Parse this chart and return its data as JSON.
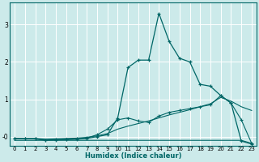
{
  "xlabel": "Humidex (Indice chaleur)",
  "bg_color": "#cceaea",
  "line_color": "#006666",
  "grid_color": "#ffffff",
  "xlim": [
    -0.5,
    23.5
  ],
  "ylim": [
    -0.25,
    3.6
  ],
  "xticks": [
    0,
    1,
    2,
    3,
    4,
    5,
    6,
    7,
    8,
    9,
    10,
    11,
    12,
    13,
    14,
    15,
    16,
    17,
    18,
    19,
    20,
    21,
    22,
    23
  ],
  "yticks": [
    0,
    1,
    2,
    3
  ],
  "ytick_labels": [
    "-0",
    "1",
    "2",
    "3"
  ],
  "curve1_x": [
    0,
    1,
    2,
    3,
    4,
    5,
    6,
    7,
    8,
    9,
    10,
    11,
    12,
    13,
    14,
    15,
    16,
    17,
    18,
    19,
    20,
    21,
    22,
    23
  ],
  "curve1_y": [
    -0.05,
    -0.06,
    -0.06,
    -0.1,
    -0.09,
    -0.08,
    -0.07,
    -0.05,
    0.0,
    0.05,
    0.5,
    1.85,
    2.05,
    2.05,
    3.3,
    2.55,
    2.1,
    2.0,
    1.4,
    1.35,
    1.1,
    0.9,
    -0.12,
    -0.2
  ],
  "curve2_x": [
    0,
    1,
    2,
    3,
    4,
    5,
    6,
    7,
    8,
    9,
    10,
    11,
    12,
    13,
    14,
    15,
    16,
    17,
    18,
    19,
    20,
    21,
    22,
    23
  ],
  "curve2_y": [
    -0.1,
    -0.1,
    -0.1,
    -0.1,
    -0.1,
    -0.1,
    -0.1,
    -0.1,
    -0.1,
    -0.1,
    -0.1,
    -0.1,
    -0.1,
    -0.1,
    -0.1,
    -0.1,
    -0.1,
    -0.1,
    -0.1,
    -0.1,
    -0.1,
    -0.1,
    -0.1,
    -0.18
  ],
  "curve3_x": [
    0,
    1,
    2,
    3,
    4,
    5,
    6,
    7,
    8,
    9,
    10,
    11,
    12,
    13,
    14,
    15,
    16,
    17,
    18,
    19,
    20,
    21,
    22,
    23
  ],
  "curve3_y": [
    -0.05,
    -0.06,
    -0.06,
    -0.09,
    -0.08,
    -0.07,
    -0.06,
    -0.04,
    0.05,
    0.2,
    0.45,
    0.5,
    0.42,
    0.38,
    0.55,
    0.65,
    0.7,
    0.75,
    0.8,
    0.85,
    1.1,
    0.9,
    0.45,
    -0.18
  ],
  "curve4_x": [
    0,
    1,
    2,
    3,
    4,
    5,
    6,
    7,
    8,
    9,
    10,
    11,
    12,
    13,
    14,
    15,
    16,
    17,
    18,
    19,
    20,
    21,
    22,
    23
  ],
  "curve4_y": [
    -0.05,
    -0.05,
    -0.05,
    -0.07,
    -0.06,
    -0.05,
    -0.04,
    -0.02,
    0.02,
    0.08,
    0.2,
    0.28,
    0.35,
    0.42,
    0.5,
    0.58,
    0.65,
    0.72,
    0.8,
    0.88,
    1.05,
    0.95,
    0.8,
    0.7
  ]
}
